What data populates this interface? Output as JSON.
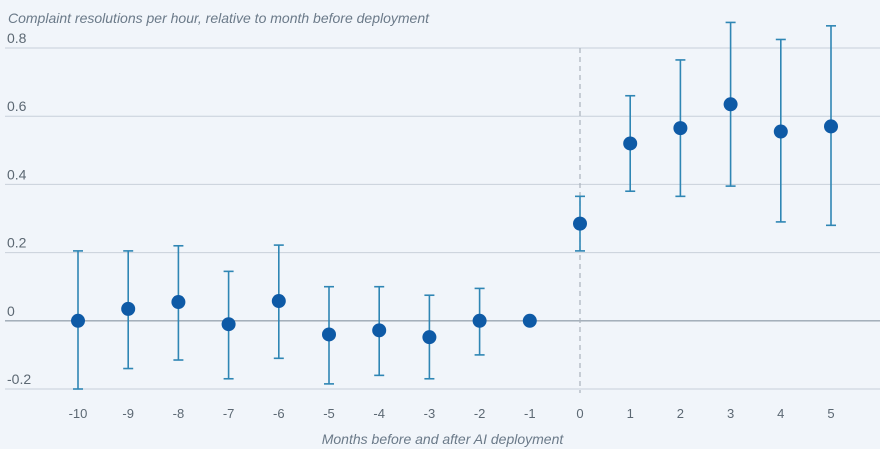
{
  "chart_data": {
    "type": "scatter",
    "title": "Complaint resolutions per hour, relative to month before deployment",
    "xlabel": "Months before and after AI deployment",
    "ylabel": "",
    "ylim": [
      -0.2,
      0.8
    ],
    "yticks": [
      -0.2,
      0,
      0.2,
      0.4,
      0.6,
      0.8
    ],
    "ytick_labels": [
      "-0.2",
      "0",
      "0.2",
      "0.4",
      "0.6",
      "0.8"
    ],
    "x": [
      -10,
      -9,
      -8,
      -7,
      -6,
      -5,
      -4,
      -3,
      -2,
      -1,
      0,
      1,
      2,
      3,
      4,
      5
    ],
    "xtick_labels": [
      "-10",
      "-9",
      "-8",
      "-7",
      "-6",
      "-5",
      "-4",
      "-3",
      "-2",
      "-1",
      "0",
      "1",
      "2",
      "3",
      "4",
      "5"
    ],
    "y": [
      0.0,
      0.035,
      0.055,
      -0.01,
      0.058,
      -0.04,
      -0.028,
      -0.048,
      0.0,
      0.0,
      0.285,
      0.52,
      0.565,
      0.635,
      0.555,
      0.57
    ],
    "ci_low": [
      -0.2,
      -0.14,
      -0.115,
      -0.17,
      -0.11,
      -0.185,
      -0.16,
      -0.17,
      -0.1,
      0.0,
      0.205,
      0.38,
      0.365,
      0.395,
      0.29,
      0.28
    ],
    "ci_high": [
      0.205,
      0.205,
      0.22,
      0.145,
      0.222,
      0.1,
      0.1,
      0.075,
      0.095,
      0.0,
      0.365,
      0.66,
      0.765,
      0.875,
      0.825,
      0.865
    ],
    "reference_line_x": 0,
    "grid": "horizontal",
    "colors": {
      "point": "#0e5aa6",
      "error_bar": "#2f86b4",
      "background": "#f1f5fa"
    }
  }
}
